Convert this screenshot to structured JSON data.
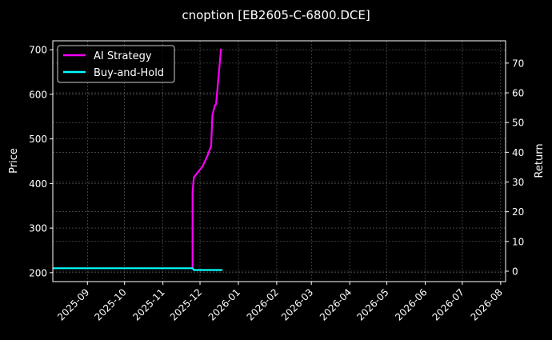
{
  "chart_data": {
    "type": "line",
    "title": "cnoption [EB2605-C-6800.DCE]",
    "xlabel": "",
    "ylabel": "Price",
    "y2label": "Return",
    "xlim": [
      "2025-08-04",
      "2026-08-05"
    ],
    "ylim": [
      180,
      720
    ],
    "y2lim": [
      -3.5,
      77.5
    ],
    "x_ticks": [
      "2025-09",
      "2025-10",
      "2025-11",
      "2025-12",
      "2026-01",
      "2026-02",
      "2026-03",
      "2026-04",
      "2026-05",
      "2026-06",
      "2026-07",
      "2026-08"
    ],
    "y_ticks": [
      200,
      300,
      400,
      500,
      600,
      700
    ],
    "y2_ticks": [
      0,
      10,
      20,
      30,
      40,
      50,
      60,
      70
    ],
    "grid": true,
    "legend_position": "top-left",
    "series": [
      {
        "name": "AI Strategy",
        "color": "#ff00ff",
        "points": [
          [
            "2025-11-25",
            210
          ],
          [
            "2025-11-25",
            380
          ],
          [
            "2025-11-26",
            414
          ],
          [
            "2025-12-03",
            438
          ],
          [
            "2025-12-07",
            462
          ],
          [
            "2025-12-10",
            484
          ],
          [
            "2025-12-11",
            553
          ],
          [
            "2025-12-13",
            575
          ],
          [
            "2025-12-14",
            578
          ],
          [
            "2025-12-18",
            702
          ]
        ]
      },
      {
        "name": "Buy-and-Hold",
        "color": "#00ffff",
        "points": [
          [
            "2025-08-04",
            210
          ],
          [
            "2025-11-25",
            210
          ],
          [
            "2025-11-26",
            206
          ],
          [
            "2025-12-19",
            206
          ]
        ]
      }
    ]
  }
}
